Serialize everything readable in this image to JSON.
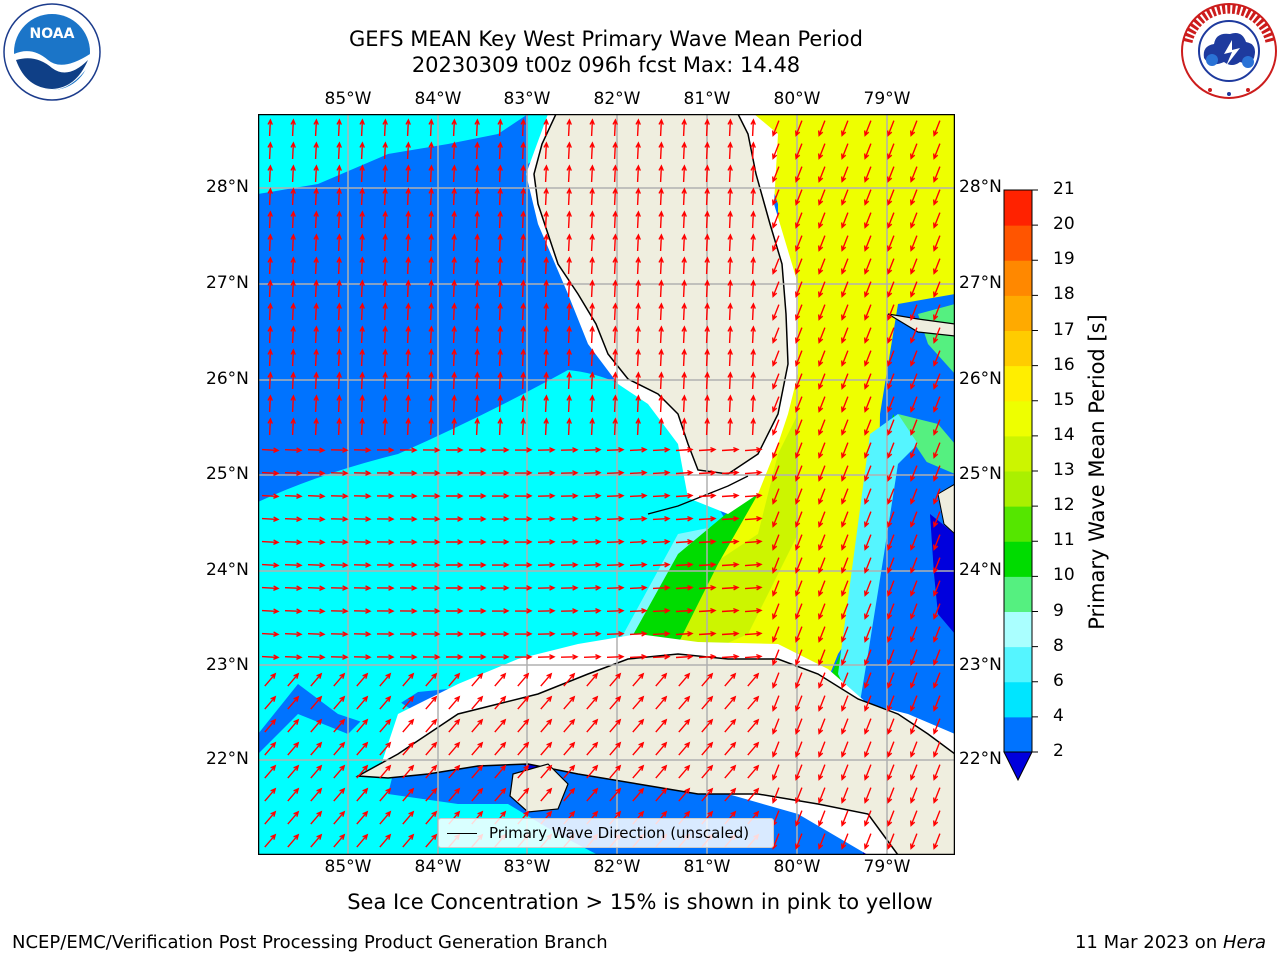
{
  "title_line1": "GEFS MEAN Key West Primary Wave Mean Period",
  "title_line2": "20230309 t00z 096h fcst   Max: 14.48",
  "lon_labels": [
    "85°W",
    "84°W",
    "83°W",
    "82°W",
    "81°W",
    "80°W",
    "79°W"
  ],
  "lat_labels": [
    "28°N",
    "27°N",
    "26°N",
    "25°N",
    "24°N",
    "23°N",
    "22°N"
  ],
  "legend_label": "Primary Wave Direction (unscaled)",
  "subtitle": "Sea Ice Concentration > 15% is shown in pink to yellow",
  "footer_left": "NCEP/EMC/Verification Post Processing Product Generation Branch",
  "footer_date": "11 Mar 2023 on ",
  "footer_host": "Hera",
  "colorbar": {
    "label": "Primary Wave Mean Period [s]",
    "ticks": [
      "2",
      "4",
      "6",
      "8",
      "9",
      "10",
      "11",
      "12",
      "13",
      "14",
      "15",
      "16",
      "17",
      "18",
      "19",
      "20",
      "21"
    ],
    "colors": [
      "#0073ff",
      "#00e5ff",
      "#55f5ff",
      "#aaffff",
      "#55f080",
      "#00dc00",
      "#55e600",
      "#aaf000",
      "#ccf500",
      "#eeff00",
      "#ffee00",
      "#ffcc00",
      "#ffaa00",
      "#ff8800",
      "#ff5500",
      "#ff2200"
    ],
    "under_color": "#0000dd"
  },
  "logos": {
    "left": "NOAA",
    "right": "NATIONAL WEATHER SERVICE"
  },
  "map_colors": {
    "land": "#efeedf",
    "deep_blue": "#0073ff",
    "cyan": "#00ffff",
    "light_cyan": "#7ff8ff",
    "yellow": "#eeff00",
    "yellow_green": "#ccf500",
    "green": "#00dc00",
    "navy": "#0000dd",
    "arrow": "#ff0000",
    "grid": "#b0b0b0"
  }
}
